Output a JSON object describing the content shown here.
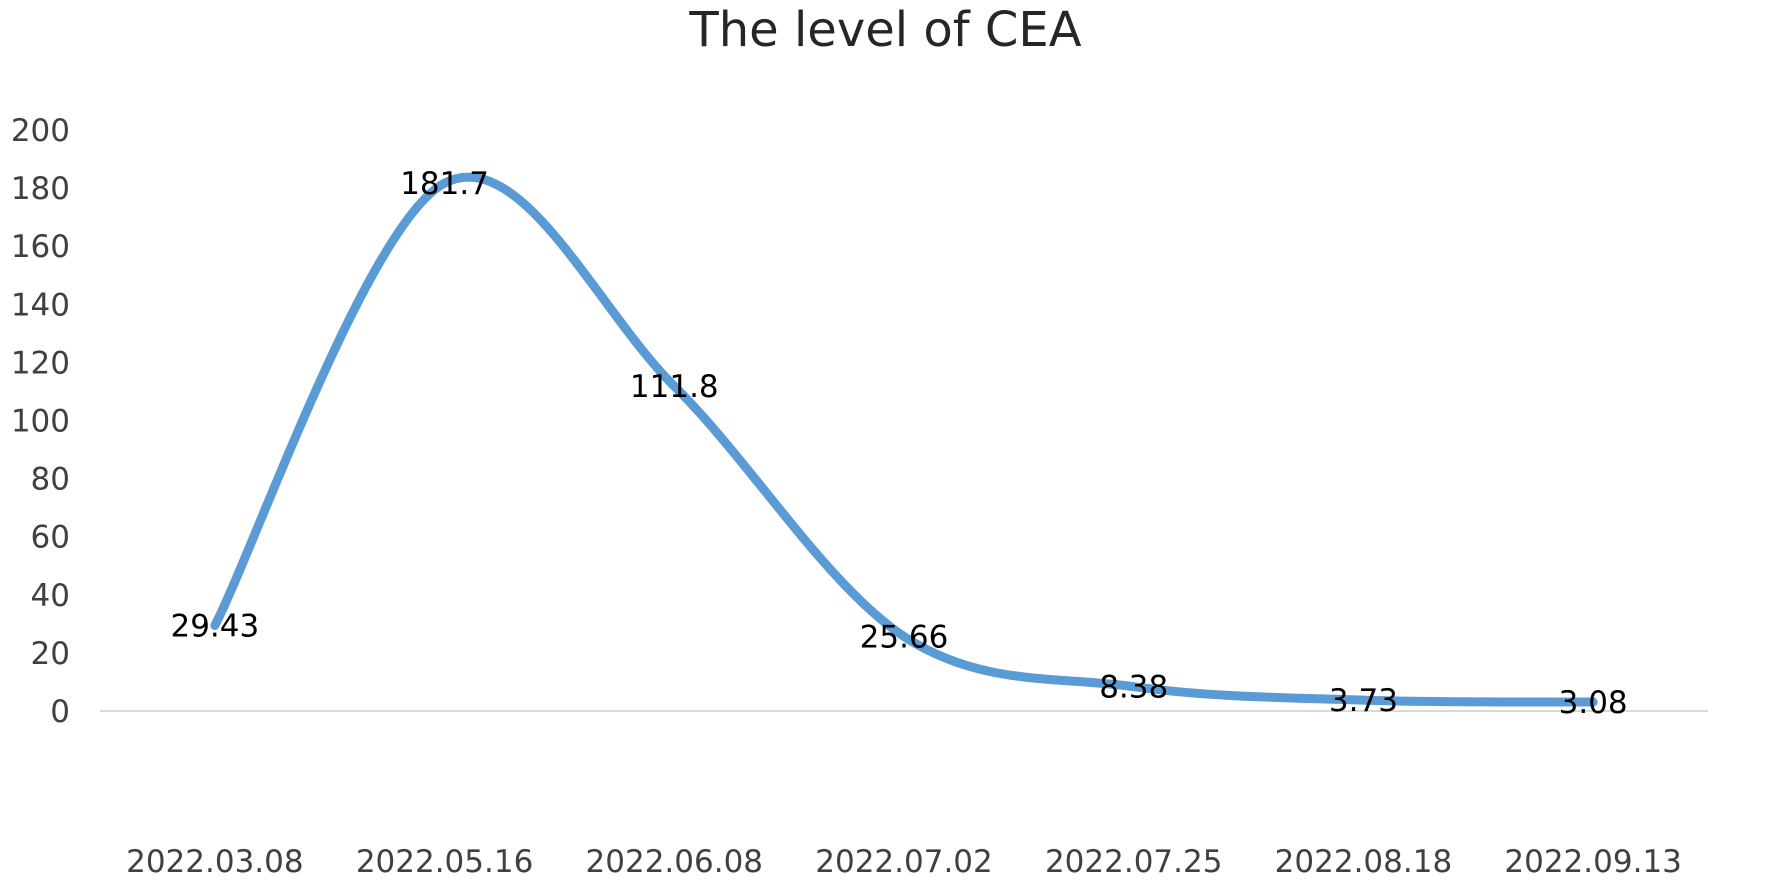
{
  "chart_data": {
    "type": "line",
    "title": "The level of CEA",
    "xlabel": "",
    "ylabel": "",
    "categories": [
      "2022.03.08",
      "2022.05.16",
      "2022.06.08",
      "2022.07.02",
      "2022.07.25",
      "2022.08.18",
      "2022.09.13"
    ],
    "series": [
      {
        "values": [
          29.43,
          181.7,
          111.8,
          25.66,
          8.38,
          3.73,
          3.08
        ],
        "data_labels": [
          "29.43",
          "181.7",
          "111.8",
          "25.66",
          "8.38",
          "3.73",
          "3.08"
        ],
        "color": "#5b9bd5",
        "smooth": true
      }
    ],
    "ylim": [
      0,
      200
    ],
    "yticks": [
      0,
      20,
      40,
      60,
      80,
      100,
      120,
      140,
      160,
      180,
      200
    ],
    "ytick_labels": [
      "0",
      "20",
      "40",
      "60",
      "80",
      "100",
      "120",
      "140",
      "160",
      "180",
      "200"
    ],
    "grid": false,
    "legend": "none",
    "baseline_color": "#d9d9d9"
  }
}
